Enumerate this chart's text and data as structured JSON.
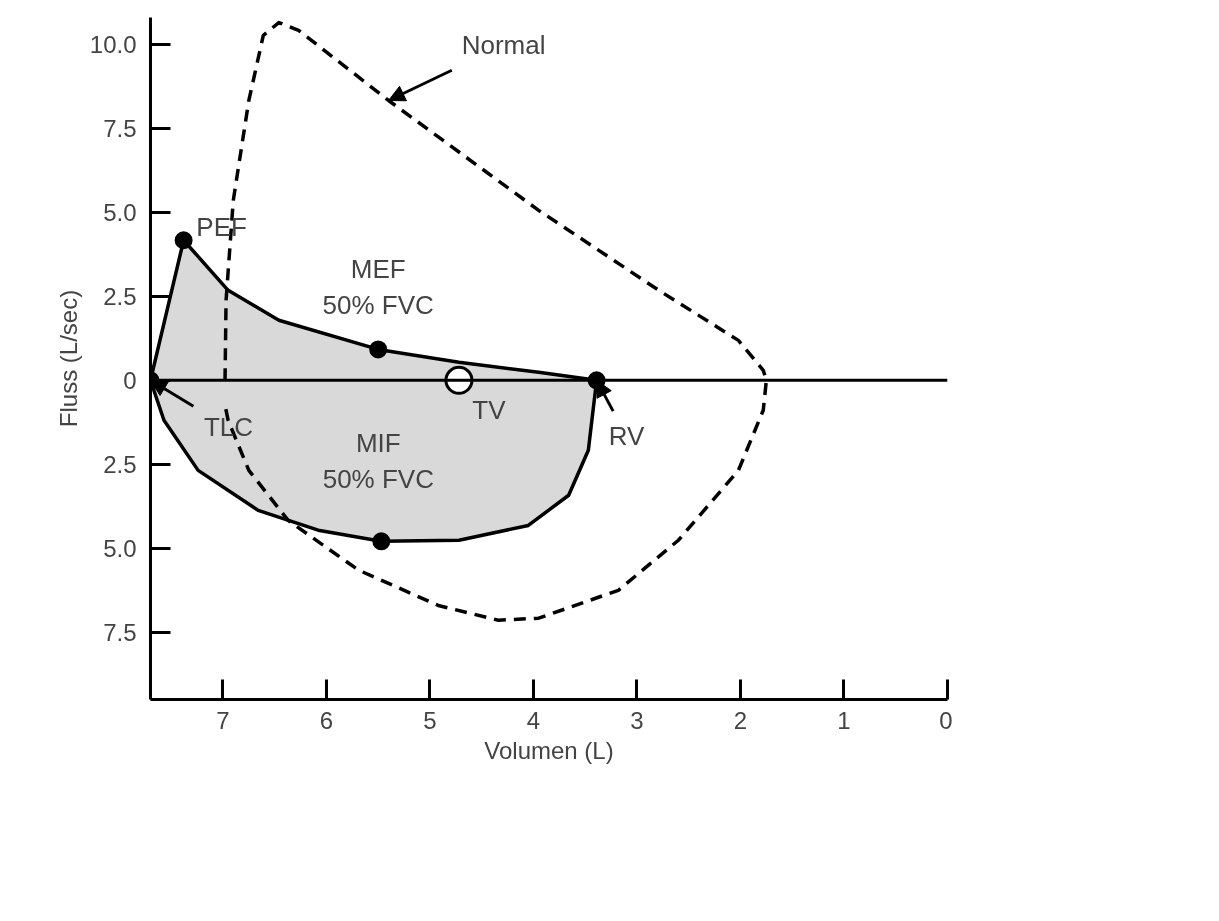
{
  "chart_data": {
    "type": "area",
    "xlabel": "Volumen (L)",
    "ylabel": "Fluss (L/sec)",
    "xlim": [
      7.7,
      0
    ],
    "xticks": [
      7,
      6,
      5,
      4,
      3,
      2,
      1,
      0
    ],
    "ylim": [
      -9.5,
      10.8
    ],
    "yticks": [
      {
        "value": -7.5,
        "label": "7.5"
      },
      {
        "value": -5,
        "label": "5.0"
      },
      {
        "value": -2.5,
        "label": "2.5"
      },
      0,
      {
        "value": 2.5,
        "label": "2.5"
      },
      {
        "value": 5,
        "label": "5.0"
      },
      {
        "value": 7.5,
        "label": "7.5"
      },
      {
        "value": 10,
        "label": "10.0"
      }
    ],
    "grid": false,
    "ref_lines": [
      {
        "axis": "y",
        "value": 0,
        "label": null,
        "color": "#000000"
      }
    ],
    "series": [
      {
        "type": "area",
        "color": "#d9d9d9",
        "x": [
          7.7,
          7.38,
          6.95,
          6.46,
          5.5,
          4.72,
          3.95,
          3.39
        ],
        "values": [
          0,
          4.17,
          2.68,
          1.79,
          0.92,
          0.54,
          0.24,
          0
        ]
      },
      {
        "type": "area",
        "color": "#d9d9d9",
        "x": [
          7.7,
          7.57,
          7.24,
          6.66,
          6.08,
          5.47,
          4.72,
          4.05,
          3.66,
          3.47,
          3.39
        ],
        "values": [
          0,
          -1.19,
          -2.68,
          -3.87,
          -4.46,
          -4.79,
          -4.76,
          -4.32,
          -3.42,
          -2.08,
          0
        ]
      },
      {
        "type": "line",
        "color": "#000000",
        "line_style": "dashed",
        "x": [
          6.98,
          6.97,
          6.9,
          6.75,
          6.61,
          6.46,
          6.27,
          5.4,
          3.95,
          2.79,
          2.02,
          1.78,
          1.75,
          1.78,
          2.02,
          2.6,
          3.18,
          3.95,
          4.34,
          4.92,
          5.69,
          6.37,
          6.75,
          6.95,
          6.98
        ],
        "values": [
          0,
          2.38,
          5.36,
          8.33,
          10.27,
          10.65,
          10.42,
          8.33,
          5.06,
          2.68,
          1.19,
          0.3,
          0,
          -0.89,
          -2.68,
          -4.76,
          -6.25,
          -7.08,
          -7.14,
          -6.7,
          -5.65,
          -4.17,
          -2.68,
          -1.19,
          -0.74
        ]
      },
      {
        "type": "scatter",
        "color": "#000000",
        "marker": "circle",
        "x": [
          7.7,
          7.38,
          5.5,
          3.39,
          5.47
        ],
        "values": [
          0,
          4.17,
          0.92,
          0,
          -4.79
        ]
      },
      {
        "type": "scatter",
        "color": "#ffffff",
        "marker": "circle",
        "x": [
          4.72
        ],
        "values": [
          0
        ]
      }
    ],
    "annotations": [
      {
        "text": "PEF",
        "x": 7.38,
        "y": 4.17
      },
      {
        "text": "MEF\n50% FVC",
        "x": 5.5,
        "y": 0.92
      },
      {
        "text": "MIF\n50% FVC",
        "x": 5.47,
        "y": -4.79
      },
      {
        "text": "TLC",
        "x": 7.7,
        "y": 0
      },
      {
        "text": "TV",
        "x": 4.72,
        "y": 0
      },
      {
        "text": "RV",
        "x": 3.39,
        "y": 0
      },
      {
        "text": "Normal",
        "x": 5.4,
        "y": 8.33
      }
    ]
  }
}
